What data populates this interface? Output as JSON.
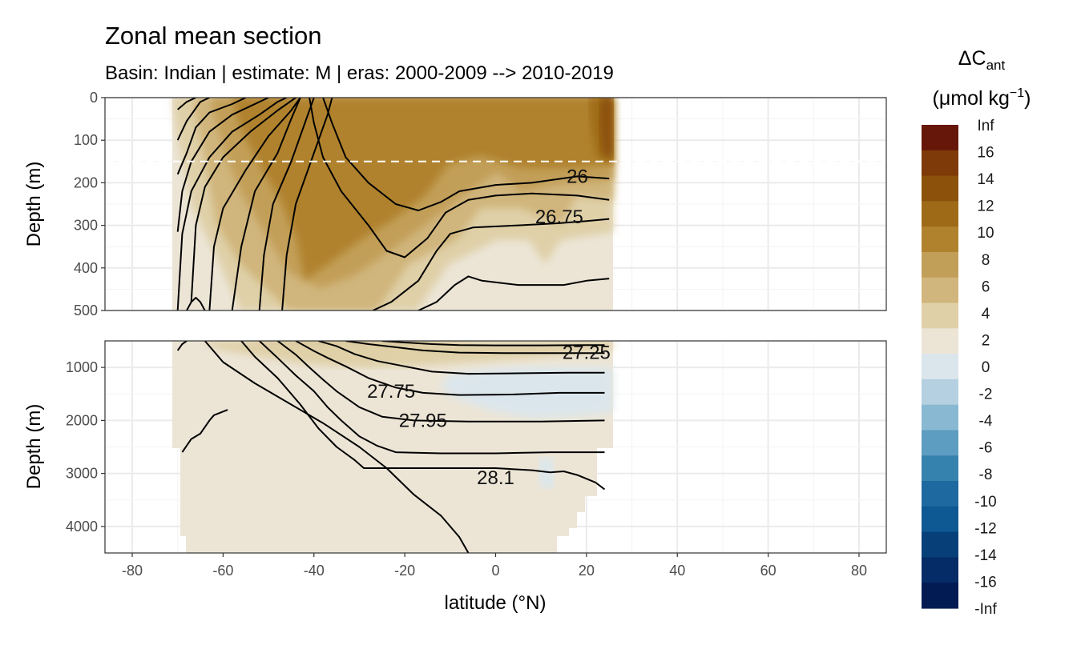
{
  "chart_data": {
    "type": "heatmap",
    "title": "Zonal mean section",
    "subtitle": "Basin: Indian | estimate: M  | eras: 2000-2009 --> 2010-2019",
    "xlabel": "latitude (°N)",
    "ylabel_top": "Depth (m)",
    "ylabel_bottom": "Depth (m)",
    "xlim": [
      -86,
      86
    ],
    "x_ticks": [
      -80,
      -60,
      -40,
      -20,
      0,
      20,
      40,
      60,
      80
    ],
    "x_tick_labels": [
      "-80",
      "-60",
      "-40",
      "-20",
      "0",
      "20",
      "40",
      "60",
      "80"
    ],
    "panels": [
      {
        "name": "upper",
        "ylim": [
          0,
          500
        ],
        "y_ticks": [
          0,
          100,
          200,
          300,
          400,
          500
        ],
        "y_tick_labels": [
          "0",
          "100",
          "200",
          "300",
          "400",
          "500"
        ]
      },
      {
        "name": "lower",
        "ylim": [
          500,
          4500
        ],
        "y_ticks": [
          1000,
          2000,
          3000,
          4000
        ],
        "y_tick_labels": [
          "1000",
          "2000",
          "3000",
          "4000"
        ]
      }
    ],
    "data_extent": {
      "lat_min": -70,
      "lat_max": 25
    },
    "reference_depth": 150,
    "legend": {
      "title_main": "ΔC",
      "title_sub": "ant",
      "title_unit_pre": "(μmol kg",
      "title_unit_sup": "−1",
      "title_unit_post": ")",
      "labels": [
        "Inf",
        "16",
        "14",
        "12",
        "10",
        "8",
        "6",
        "4",
        "2",
        "0",
        "-2",
        "-4",
        "-6",
        "-8",
        "-10",
        "-12",
        "-14",
        "-16",
        "-Inf"
      ],
      "colors": [
        "#67160a",
        "#7e3a08",
        "#8c510a",
        "#9e6a18",
        "#b0822e",
        "#c29f58",
        "#d0b57c",
        "#dfd0a8",
        "#ece5d6",
        "#dbe6ec",
        "#b5d0e0",
        "#89b9d2",
        "#5d9dc1",
        "#3682ae",
        "#1e6aa0",
        "#0e5893",
        "#073f78",
        "#052c66",
        "#021b53"
      ]
    },
    "contour_labels": [
      {
        "text": "26",
        "lat": 18,
        "depth": 185
      },
      {
        "text": "26.75",
        "lat": 14,
        "depth": 280
      },
      {
        "text": "27.25",
        "lat": 20,
        "depth": 720
      },
      {
        "text": "27.75",
        "lat": -23,
        "depth": 1450
      },
      {
        "text": "27.95",
        "lat": -16,
        "depth": 2000
      },
      {
        "text": "28.1",
        "lat": 0,
        "depth": 3080
      }
    ],
    "isopycnals": [
      {
        "name": "upper-1",
        "points": [
          [
            -70,
            28
          ],
          [
            -68,
            10
          ],
          [
            -66,
            0
          ]
        ]
      },
      {
        "name": "upper-2",
        "points": [
          [
            -70,
            100
          ],
          [
            -68,
            55
          ],
          [
            -65,
            10
          ],
          [
            -63,
            0
          ]
        ]
      },
      {
        "name": "upper-3",
        "points": [
          [
            -70,
            180
          ],
          [
            -68,
            130
          ],
          [
            -66,
            70
          ],
          [
            -63,
            35
          ],
          [
            -58,
            15
          ],
          [
            -55,
            0
          ]
        ]
      },
      {
        "name": "upper-4",
        "points": [
          [
            -70,
            315
          ],
          [
            -69,
            220
          ],
          [
            -67,
            150
          ],
          [
            -63,
            80
          ],
          [
            -58,
            40
          ],
          [
            -52,
            10
          ],
          [
            -50,
            0
          ]
        ]
      },
      {
        "name": "upper-5",
        "points": [
          [
            -70,
            500
          ],
          [
            -69,
            320
          ],
          [
            -67,
            220
          ],
          [
            -63,
            140
          ],
          [
            -58,
            80
          ],
          [
            -52,
            40
          ],
          [
            -48,
            10
          ],
          [
            -46,
            0
          ]
        ]
      },
      {
        "name": "upper-6",
        "points": [
          [
            -67,
            480
          ],
          [
            -66,
            300
          ],
          [
            -64,
            210
          ],
          [
            -60,
            140
          ],
          [
            -54,
            80
          ],
          [
            -48,
            30
          ],
          [
            -44,
            0
          ]
        ]
      },
      {
        "name": "upper-7",
        "points": [
          [
            -63,
            500
          ],
          [
            -62,
            350
          ],
          [
            -60,
            260
          ],
          [
            -55,
            170
          ],
          [
            -50,
            90
          ],
          [
            -45,
            30
          ],
          [
            -43,
            0
          ]
        ]
      },
      {
        "name": "upper-8",
        "points": [
          [
            -58,
            500
          ],
          [
            -56,
            350
          ],
          [
            -53,
            220
          ],
          [
            -48,
            130
          ],
          [
            -45,
            50
          ],
          [
            -43,
            0
          ]
        ]
      },
      {
        "name": "upper-9",
        "points": [
          [
            -52,
            500
          ],
          [
            -51,
            370
          ],
          [
            -49,
            250
          ],
          [
            -45,
            150
          ],
          [
            -42,
            60
          ],
          [
            -40,
            0
          ]
        ]
      },
      {
        "name": "upper-10",
        "points": [
          [
            -47,
            500
          ],
          [
            -46,
            370
          ],
          [
            -44,
            250
          ],
          [
            -40,
            130
          ],
          [
            -37,
            40
          ],
          [
            -36,
            0
          ]
        ]
      },
      {
        "name": "sigma-26",
        "points": [
          [
            -38,
            0
          ],
          [
            -36,
            60
          ],
          [
            -33,
            140
          ],
          [
            -28,
            200
          ],
          [
            -22,
            250
          ],
          [
            -17,
            265
          ],
          [
            -12,
            245
          ],
          [
            -8,
            220
          ],
          [
            0,
            205
          ],
          [
            8,
            200
          ],
          [
            18,
            185
          ],
          [
            25,
            190
          ]
        ]
      },
      {
        "name": "sigma-26.75",
        "points": [
          [
            -41,
            0
          ],
          [
            -40,
            60
          ],
          [
            -38,
            140
          ],
          [
            -34,
            220
          ],
          [
            -28,
            300
          ],
          [
            -24,
            360
          ],
          [
            -20,
            375
          ],
          [
            -15,
            330
          ],
          [
            -11,
            270
          ],
          [
            -6,
            240
          ],
          [
            0,
            230
          ],
          [
            8,
            225
          ],
          [
            18,
            230
          ],
          [
            25,
            240
          ]
        ]
      },
      {
        "name": "upper-13",
        "points": [
          [
            -27,
            500
          ],
          [
            -23,
            480
          ],
          [
            -17,
            430
          ],
          [
            -13,
            360
          ],
          [
            -10,
            320
          ],
          [
            -5,
            305
          ],
          [
            5,
            300
          ],
          [
            14,
            295
          ],
          [
            20,
            290
          ],
          [
            25,
            285
          ]
        ]
      },
      {
        "name": "upper-14",
        "points": [
          [
            -17,
            500
          ],
          [
            -13,
            480
          ],
          [
            -9,
            440
          ],
          [
            -6,
            420
          ],
          [
            -3,
            430
          ],
          [
            5,
            440
          ],
          [
            15,
            440
          ],
          [
            20,
            430
          ],
          [
            25,
            425
          ]
        ]
      },
      {
        "name": "upper-15",
        "points": [
          [
            -68,
            500
          ],
          [
            -67,
            480
          ],
          [
            -66,
            470
          ],
          [
            -65,
            480
          ],
          [
            -64,
            500
          ]
        ]
      },
      {
        "name": "lower-1",
        "points": [
          [
            -70,
            680
          ],
          [
            -69,
            560
          ],
          [
            -68,
            500
          ]
        ]
      },
      {
        "name": "lower-2",
        "points": [
          [
            -64,
            500
          ],
          [
            -60,
            900
          ],
          [
            -53,
            1300
          ],
          [
            -45,
            1700
          ],
          [
            -38,
            2050
          ],
          [
            -30,
            2500
          ],
          [
            -24,
            2900
          ],
          [
            -18,
            3400
          ],
          [
            -12,
            3800
          ],
          [
            -8,
            4200
          ],
          [
            -6,
            4500
          ]
        ]
      },
      {
        "name": "lower-3",
        "points": [
          [
            -69,
            2600
          ],
          [
            -67,
            2350
          ],
          [
            -65,
            2250
          ],
          [
            -63,
            2000
          ],
          [
            -62,
            1900
          ],
          [
            -59,
            1800
          ]
        ]
      },
      {
        "name": "lower-4",
        "points": [
          [
            -56,
            500
          ],
          [
            -53,
            800
          ],
          [
            -48,
            1200
          ],
          [
            -43,
            1700
          ],
          [
            -39,
            2150
          ],
          [
            -35,
            2500
          ],
          [
            -31,
            2750
          ],
          [
            -29,
            2900
          ],
          [
            -20,
            2900
          ],
          [
            -10,
            2900
          ],
          [
            0,
            2900
          ],
          [
            8,
            2940
          ],
          [
            12,
            2980
          ],
          [
            15,
            2960
          ],
          [
            18,
            3030
          ],
          [
            22,
            3170
          ],
          [
            24,
            3300
          ]
        ]
      },
      {
        "name": "lower-5",
        "points": [
          [
            -52,
            500
          ],
          [
            -48,
            820
          ],
          [
            -44,
            1150
          ],
          [
            -40,
            1450
          ],
          [
            -37,
            1750
          ],
          [
            -34,
            2000
          ],
          [
            -30,
            2300
          ],
          [
            -26,
            2480
          ],
          [
            -22,
            2600
          ],
          [
            -12,
            2620
          ],
          [
            0,
            2620
          ],
          [
            12,
            2600
          ],
          [
            24,
            2600
          ]
        ]
      },
      {
        "name": "sigma-27.95",
        "points": [
          [
            -48,
            500
          ],
          [
            -44,
            760
          ],
          [
            -41,
            1000
          ],
          [
            -38,
            1230
          ],
          [
            -35,
            1450
          ],
          [
            -30,
            1750
          ],
          [
            -25,
            1930
          ],
          [
            -18,
            2000
          ],
          [
            -6,
            2020
          ],
          [
            10,
            2020
          ],
          [
            24,
            2000
          ]
        ]
      },
      {
        "name": "sigma-27.75",
        "points": [
          [
            -44,
            500
          ],
          [
            -40,
            690
          ],
          [
            -37,
            820
          ],
          [
            -33,
            980
          ],
          [
            -28,
            1200
          ],
          [
            -22,
            1380
          ],
          [
            -16,
            1480
          ],
          [
            -8,
            1520
          ],
          [
            4,
            1510
          ],
          [
            14,
            1480
          ],
          [
            24,
            1480
          ]
        ]
      },
      {
        "name": "lower-8",
        "points": [
          [
            -39,
            500
          ],
          [
            -35,
            600
          ],
          [
            -31,
            750
          ],
          [
            -26,
            880
          ],
          [
            -20,
            980
          ],
          [
            -14,
            1080
          ],
          [
            -6,
            1120
          ],
          [
            6,
            1110
          ],
          [
            16,
            1100
          ],
          [
            24,
            1100
          ]
        ]
      },
      {
        "name": "sigma-27.25",
        "points": [
          [
            -33,
            500
          ],
          [
            -28,
            560
          ],
          [
            -22,
            620
          ],
          [
            -16,
            680
          ],
          [
            -8,
            720
          ],
          [
            2,
            730
          ],
          [
            12,
            730
          ],
          [
            22,
            730
          ],
          [
            24,
            730
          ]
        ]
      },
      {
        "name": "lower-10",
        "points": [
          [
            -25,
            500
          ],
          [
            -20,
            530
          ],
          [
            -14,
            560
          ],
          [
            -8,
            580
          ],
          [
            0,
            585
          ],
          [
            10,
            585
          ],
          [
            20,
            580
          ],
          [
            24,
            580
          ]
        ]
      }
    ]
  }
}
